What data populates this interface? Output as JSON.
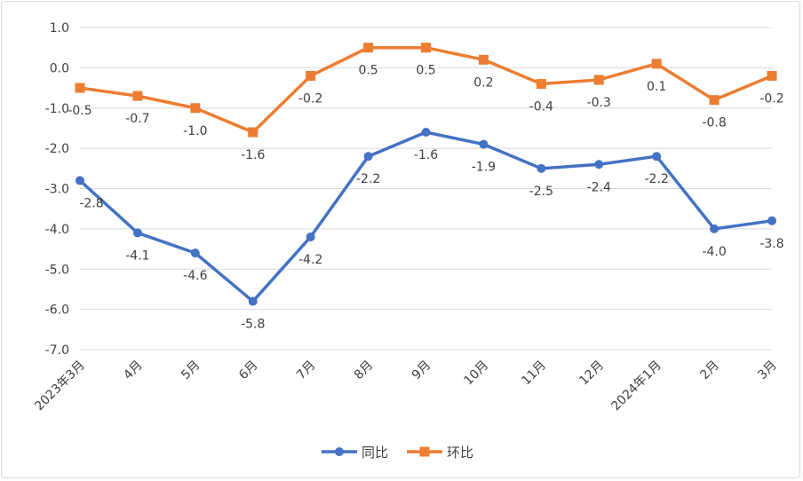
{
  "chart_data": {
    "type": "line",
    "title": "",
    "xlabel": "",
    "ylabel": "",
    "categories": [
      "2023年3月",
      "4月",
      "5月",
      "6月",
      "7月",
      "8月",
      "9月",
      "10月",
      "11月",
      "12月",
      "2024年1月",
      "2月",
      "3月"
    ],
    "ylim": [
      -7.0,
      1.0
    ],
    "yticks": [
      "1.0",
      "0.0",
      "-1.0",
      "-2.0",
      "-3.0",
      "-4.0",
      "-5.0",
      "-6.0",
      "-7.0"
    ],
    "grid": true,
    "legend_position": "bottom",
    "series": [
      {
        "name": "同比",
        "color": "#4472C4",
        "marker": "circle",
        "values": [
          -2.8,
          -4.1,
          -4.6,
          -5.8,
          -4.2,
          -2.2,
          -1.6,
          -1.9,
          -2.5,
          -2.4,
          -2.2,
          -4.0,
          -3.8
        ]
      },
      {
        "name": "环比",
        "color": "#ED7D31",
        "marker": "square",
        "values": [
          -0.5,
          -0.7,
          -1.0,
          -1.6,
          -0.2,
          0.5,
          0.5,
          0.2,
          -0.4,
          -0.3,
          0.1,
          -0.8,
          -0.2
        ]
      }
    ]
  }
}
